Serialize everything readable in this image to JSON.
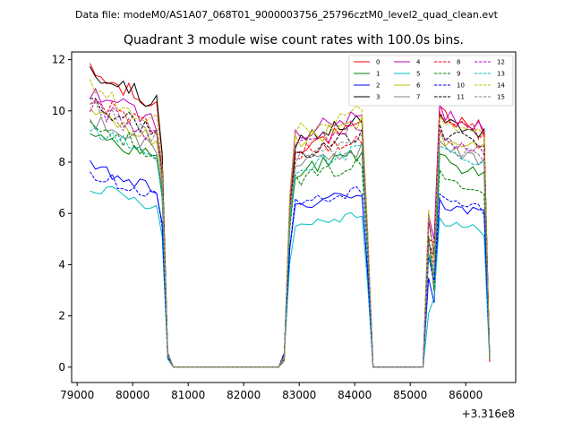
{
  "suptitle": "Data file: modeM0/AS1A07_068T01_9000003756_25796cztM0_level2_quad_clean.evt",
  "chart_data": {
    "type": "line",
    "title": "Quadrant 3 module wise count rates with 100.0s bins.",
    "xlabel": "",
    "ylabel": "",
    "x_offset_label": "+3.316e8",
    "xlim": [
      78900,
      86900
    ],
    "ylim": [
      -0.6,
      12.3
    ],
    "x_ticks": [
      79000,
      80000,
      81000,
      82000,
      83000,
      84000,
      85000,
      86000
    ],
    "x_tick_labels": [
      "79000",
      "80000",
      "81000",
      "82000",
      "83000",
      "84000",
      "85000",
      "86000"
    ],
    "y_ticks": [
      0,
      2,
      4,
      6,
      8,
      10,
      12
    ],
    "y_tick_labels": [
      "0",
      "2",
      "4",
      "6",
      "8",
      "10",
      "12"
    ],
    "legend_location": "upper-right",
    "segments": [
      {
        "start": 79230,
        "bins": 15
      },
      {
        "start": 82730,
        "bins": 16
      },
      {
        "start": 85330,
        "bins": 12
      }
    ],
    "gap_value": 0,
    "series": [
      {
        "name": "0",
        "color": "#ff0000",
        "dash": "solid",
        "levels": [
          11.5,
          9.3,
          9.8
        ]
      },
      {
        "name": "1",
        "color": "#008000",
        "dash": "solid",
        "levels": [
          9.2,
          8.3,
          8.0
        ]
      },
      {
        "name": "2",
        "color": "#0000ff",
        "dash": "solid",
        "levels": [
          7.8,
          6.8,
          6.3
        ]
      },
      {
        "name": "3",
        "color": "#000000",
        "dash": "solid",
        "levels": [
          11.6,
          9.6,
          9.5
        ]
      },
      {
        "name": "4",
        "color": "#c000c0",
        "dash": "solid",
        "levels": [
          10.8,
          9.8,
          9.9
        ]
      },
      {
        "name": "5",
        "color": "#00bfbf",
        "dash": "solid",
        "levels": [
          7.1,
          6.0,
          5.6
        ]
      },
      {
        "name": "6",
        "color": "#bfbf00",
        "dash": "solid",
        "levels": [
          10.0,
          9.5,
          8.9
        ]
      },
      {
        "name": "7",
        "color": "#808080",
        "dash": "solid",
        "levels": [
          9.7,
          8.5,
          8.5
        ]
      },
      {
        "name": "8",
        "color": "#ff0000",
        "dash": "dashed",
        "levels": [
          10.5,
          9.0,
          9.6
        ]
      },
      {
        "name": "9",
        "color": "#008000",
        "dash": "dashed",
        "levels": [
          9.5,
          7.9,
          7.4
        ]
      },
      {
        "name": "10",
        "color": "#0000ff",
        "dash": "dashed",
        "levels": [
          7.6,
          6.9,
          6.5
        ]
      },
      {
        "name": "11",
        "color": "#000000",
        "dash": "dashed",
        "levels": [
          10.4,
          9.0,
          9.1
        ]
      },
      {
        "name": "12",
        "color": "#c000c0",
        "dash": "dashed",
        "levels": [
          10.2,
          9.4,
          8.9
        ]
      },
      {
        "name": "13",
        "color": "#00bfbf",
        "dash": "dashed",
        "levels": [
          9.3,
          8.4,
          8.3
        ]
      },
      {
        "name": "14",
        "color": "#bfbf00",
        "dash": "dashed",
        "levels": [
          10.9,
          9.9,
          9.4
        ]
      },
      {
        "name": "15",
        "color": "#808080",
        "dash": "dashed",
        "levels": [
          10.1,
          8.8,
          8.7
        ]
      }
    ]
  }
}
